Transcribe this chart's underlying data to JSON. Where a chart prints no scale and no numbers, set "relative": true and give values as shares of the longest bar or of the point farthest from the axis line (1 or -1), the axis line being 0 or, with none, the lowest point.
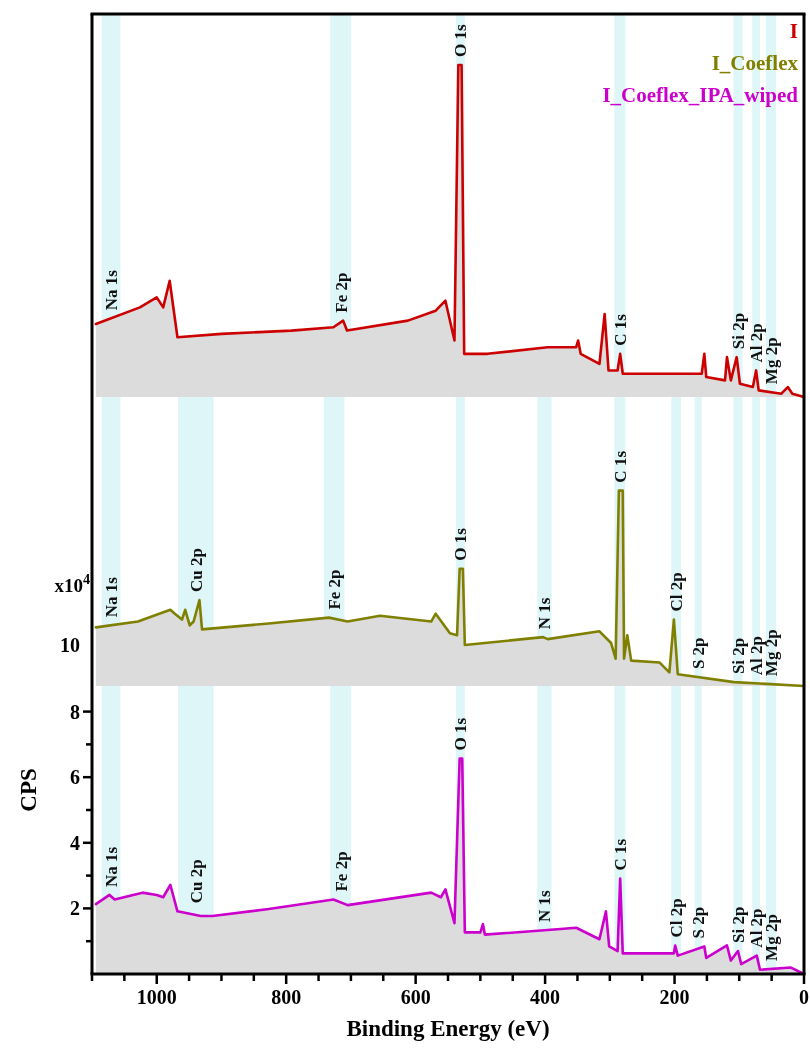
{
  "chart_data": [
    {
      "type": "area",
      "xlim": [
        1100,
        0
      ],
      "relative": true,
      "legend": "top right",
      "series": [
        {
          "name": "I",
          "color": "#cc0000",
          "x": [
            1094,
            1026,
            1000,
            990,
            980,
            968,
            900,
            792,
            727,
            712,
            706,
            612,
            569,
            554,
            540,
            534,
            529,
            525,
            489,
            396,
            352,
            349,
            345,
            316,
            308,
            302,
            288,
            284,
            280,
            158,
            154,
            151,
            122,
            119,
            113,
            104,
            99,
            79,
            74,
            70,
            35,
            25,
            18,
            0
          ],
          "values": [
            0.22,
            0.27,
            0.3,
            0.27,
            0.35,
            0.18,
            0.19,
            0.2,
            0.21,
            0.23,
            0.2,
            0.23,
            0.26,
            0.29,
            0.17,
            1,
            1,
            0.13,
            0.13,
            0.15,
            0.15,
            0.17,
            0.13,
            0.1,
            0.25,
            0.08,
            0.08,
            0.13,
            0.07,
            0.07,
            0.13,
            0.06,
            0.05,
            0.12,
            0.05,
            0.12,
            0.04,
            0.03,
            0.08,
            0.02,
            0.01,
            0.03,
            0.01,
            0
          ]
        }
      ],
      "bands": [
        {
          "axis": "x",
          "from": 1085,
          "to": 1056,
          "label": "Na 1s"
        },
        {
          "axis": "x",
          "from": 732,
          "to": 700,
          "label": "Fe 2p"
        },
        {
          "axis": "x",
          "from": 538,
          "to": 524,
          "label": "O 1s"
        },
        {
          "axis": "x",
          "from": 293,
          "to": 276,
          "label": "C 1s"
        },
        {
          "axis": "x",
          "from": 109,
          "to": 95,
          "label": "Si 2p"
        },
        {
          "axis": "x",
          "from": 80,
          "to": 68,
          "label": "Al 2p"
        },
        {
          "axis": "x",
          "from": 59,
          "to": 43,
          "label": "Mg 2p"
        }
      ]
    },
    {
      "type": "area",
      "xlim": [
        1100,
        0
      ],
      "relative": true,
      "legend": "top right",
      "annotations": [
        "x10$^{4}$",
        "10"
      ],
      "series": [
        {
          "name": "I_Coeflex",
          "color": "#808000",
          "x": [
            1094,
            1029,
            979,
            972,
            961,
            956,
            949,
            943,
            934,
            930,
            827,
            734,
            705,
            655,
            576,
            569,
            547,
            536,
            532,
            527,
            524,
            403,
            396,
            316,
            298,
            291,
            286,
            280,
            278,
            273,
            267,
            223,
            208,
            201,
            195,
            108,
            0
          ],
          "values": [
            0.3,
            0.33,
            0.39,
            0.37,
            0.34,
            0.39,
            0.31,
            0.33,
            0.44,
            0.29,
            0.32,
            0.35,
            0.33,
            0.36,
            0.33,
            0.37,
            0.27,
            0.26,
            0.6,
            0.6,
            0.21,
            0.25,
            0.24,
            0.28,
            0.22,
            0.14,
            1,
            1,
            0.14,
            0.26,
            0.13,
            0.12,
            0.07,
            0.34,
            0.06,
            0.02,
            0
          ]
        }
      ],
      "bands": [
        {
          "axis": "x",
          "from": 1085,
          "to": 1056,
          "label": "Na 1s"
        },
        {
          "axis": "x",
          "from": 967,
          "to": 912,
          "label": "Cu 2p"
        },
        {
          "axis": "x",
          "from": 742,
          "to": 710,
          "label": "Fe 2p"
        },
        {
          "axis": "x",
          "from": 538,
          "to": 524,
          "label": "O 1s"
        },
        {
          "axis": "x",
          "from": 412,
          "to": 390,
          "label": "N 1s"
        },
        {
          "axis": "x",
          "from": 293,
          "to": 276,
          "label": "C 1s"
        },
        {
          "axis": "x",
          "from": 205,
          "to": 190,
          "label": "Cl 2p"
        },
        {
          "axis": "x",
          "from": 169,
          "to": 158,
          "label": "S 2p"
        },
        {
          "axis": "x",
          "from": 109,
          "to": 95,
          "label": "Si 2p"
        },
        {
          "axis": "x",
          "from": 80,
          "to": 68,
          "label": "Al 2p"
        },
        {
          "axis": "x",
          "from": 59,
          "to": 43,
          "label": "Mg 2p"
        }
      ]
    },
    {
      "type": "area",
      "xlim": [
        1100,
        0
      ],
      "ylim": [
        0,
        8.78
      ],
      "legend": "top right",
      "xlabel": "Binding Energy (eV)",
      "ylabel": "CPS",
      "xticks": [
        {
          "value": 1100,
          "label": null
        },
        {
          "value": 1050,
          "label": null
        },
        1000,
        {
          "value": 950,
          "label": null
        },
        {
          "value": 900,
          "label": null
        },
        {
          "value": 850,
          "label": null
        },
        800,
        {
          "value": 750,
          "label": null
        },
        {
          "value": 700,
          "label": null
        },
        {
          "value": 650,
          "label": null
        },
        600,
        {
          "value": 550,
          "label": null
        },
        {
          "value": 500,
          "label": null
        },
        {
          "value": 450,
          "label": null
        },
        400,
        {
          "value": 350,
          "label": null
        },
        {
          "value": 300,
          "label": null
        },
        {
          "value": 250,
          "label": null
        },
        200,
        {
          "value": 150,
          "label": null
        },
        {
          "value": 100,
          "label": null
        },
        {
          "value": 50,
          "label": null
        },
        0
      ],
      "yticks": [
        {
          "value": 1,
          "label": null
        },
        2,
        {
          "value": 3,
          "label": null
        },
        4,
        {
          "value": 5,
          "label": null
        },
        6,
        {
          "value": 7,
          "label": null
        },
        8
      ],
      "series": [
        {
          "name": "I_Coeflex_IPA_wiped",
          "color": "#cc00cc",
          "x": [
            1094,
            1073,
            1065,
            1022,
            1000,
            990,
            979,
            968,
            932,
            914,
            827,
            727,
            705,
            576,
            561,
            554,
            540,
            532,
            528,
            524,
            500,
            496,
            493,
            396,
            352,
            316,
            306,
            301,
            288,
            284,
            280,
            201,
            199,
            195,
            154,
            151,
            119,
            113,
            102,
            97,
            73,
            68,
            21,
            0
          ],
          "values": [
            2.13,
            2.41,
            2.27,
            2.48,
            2.41,
            2.34,
            2.72,
            1.91,
            1.77,
            1.77,
            1.98,
            2.27,
            2.1,
            2.48,
            2.34,
            2.58,
            1.55,
            6.57,
            6.57,
            1.27,
            1.27,
            1.52,
            1.2,
            1.34,
            1.41,
            1.06,
            1.91,
            0.84,
            0.7,
            2.91,
            0.63,
            0.63,
            0.87,
            0.56,
            0.84,
            0.49,
            0.87,
            0.41,
            0.7,
            0.3,
            0.56,
            0.13,
            0.2,
            0.0
          ]
        }
      ],
      "bands": [
        {
          "axis": "x",
          "from": 1085,
          "to": 1056,
          "label": "Na 1s"
        },
        {
          "axis": "x",
          "from": 967,
          "to": 912,
          "label": "Cu 2p"
        },
        {
          "axis": "x",
          "from": 732,
          "to": 700,
          "label": "Fe 2p"
        },
        {
          "axis": "x",
          "from": 538,
          "to": 524,
          "label": "O 1s"
        },
        {
          "axis": "x",
          "from": 412,
          "to": 390,
          "label": "N 1s"
        },
        {
          "axis": "x",
          "from": 293,
          "to": 276,
          "label": "C 1s"
        },
        {
          "axis": "x",
          "from": 205,
          "to": 190,
          "label": "Cl 2p"
        },
        {
          "axis": "x",
          "from": 169,
          "to": 158,
          "label": "S 2p"
        },
        {
          "axis": "x",
          "from": 109,
          "to": 95,
          "label": "Si 2p"
        },
        {
          "axis": "x",
          "from": 80,
          "to": 68,
          "label": "Al 2p"
        },
        {
          "axis": "x",
          "from": 59,
          "to": 43,
          "label": "Mg 2p"
        }
      ]
    }
  ]
}
